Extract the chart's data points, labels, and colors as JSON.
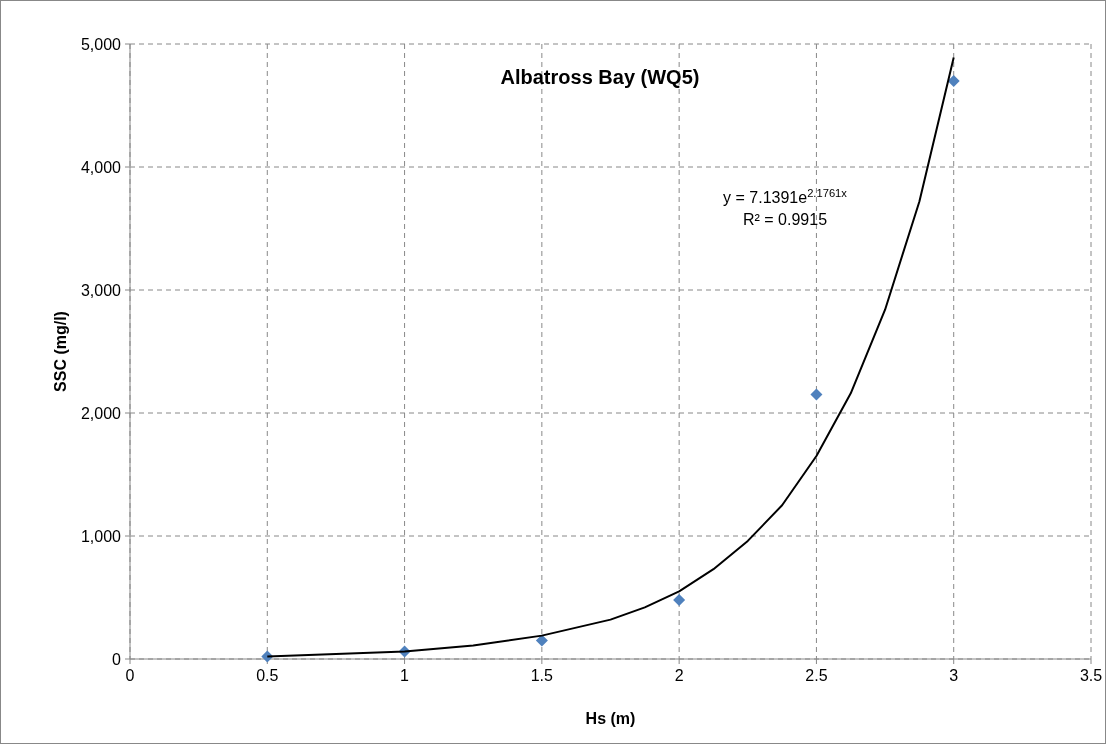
{
  "chart_data": {
    "type": "scatter",
    "title": "Albatross Bay (WQ5)",
    "xlabel": "Hs (m)",
    "ylabel": "SSC (mg/l)",
    "xlim": [
      0,
      3.5
    ],
    "xticks": [
      0,
      0.5,
      1,
      1.5,
      2,
      2.5,
      3,
      3.5
    ],
    "ylim": [
      0,
      5000
    ],
    "yticks": [
      {
        "value": 0,
        "label": "0"
      },
      {
        "value": 1000,
        "label": "1,000"
      },
      {
        "value": 2000,
        "label": "2,000"
      },
      {
        "value": 3000,
        "label": "3,000"
      },
      {
        "value": 4000,
        "label": "4,000"
      },
      {
        "value": 5000,
        "label": "5,000"
      }
    ],
    "grid": true,
    "marker": "diamond",
    "series": [
      {
        "color": "#4f81bd",
        "x": [
          0.5,
          1,
          1.5,
          2,
          2.5,
          3
        ],
        "values": [
          20,
          60,
          150,
          480,
          2150,
          4700
        ]
      },
      {
        "type": "line",
        "color": "#000000",
        "marker": "none",
        "line_style": "solid",
        "x": [
          0.5,
          0.75,
          1,
          1.25,
          1.5,
          1.75,
          1.875,
          2,
          2.125,
          2.25,
          2.375,
          2.5,
          2.625,
          2.75,
          2.875,
          3
        ],
        "values": [
          20,
          40,
          60,
          110,
          190,
          320,
          420,
          550,
          730,
          960,
          1250,
          1650,
          2160,
          2840,
          3720,
          4890
        ]
      }
    ],
    "annotations": [
      "y = 7.1391e$^{2.1761x}$",
      "R² = 0.9915"
    ]
  }
}
